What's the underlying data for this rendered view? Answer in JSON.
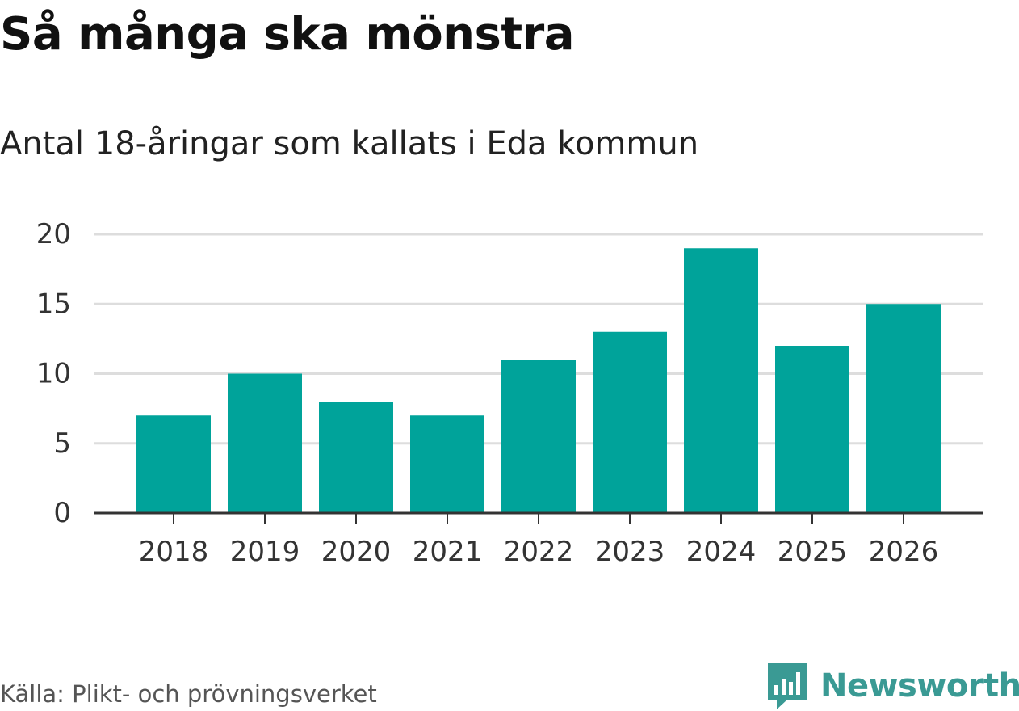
{
  "title": "Så många ska mönstra",
  "subtitle": "Antal 18-åringar som kallats i Eda kommun",
  "source": "Källa: Plikt- och prövningsverket",
  "brand": {
    "name": "Newsworthy",
    "logo_icon": "newsworthy-bar-chart-icon"
  },
  "colors": {
    "bar": "#00A39A",
    "grid": "#DDDDDD",
    "axis": "#333333",
    "brand": "#3A9A94"
  },
  "chart_data": {
    "type": "bar",
    "title": "Så många ska mönstra",
    "subtitle": "Antal 18-åringar som kallats i Eda kommun",
    "categories": [
      "2018",
      "2019",
      "2020",
      "2021",
      "2022",
      "2023",
      "2024",
      "2025",
      "2026"
    ],
    "values": [
      7,
      10,
      8,
      7,
      11,
      13,
      19,
      12,
      15
    ],
    "xlabel": "",
    "ylabel": "",
    "ylim": [
      0,
      20
    ],
    "yticks": [
      0,
      5,
      10,
      15,
      20
    ],
    "grid": true,
    "legend": "none"
  }
}
